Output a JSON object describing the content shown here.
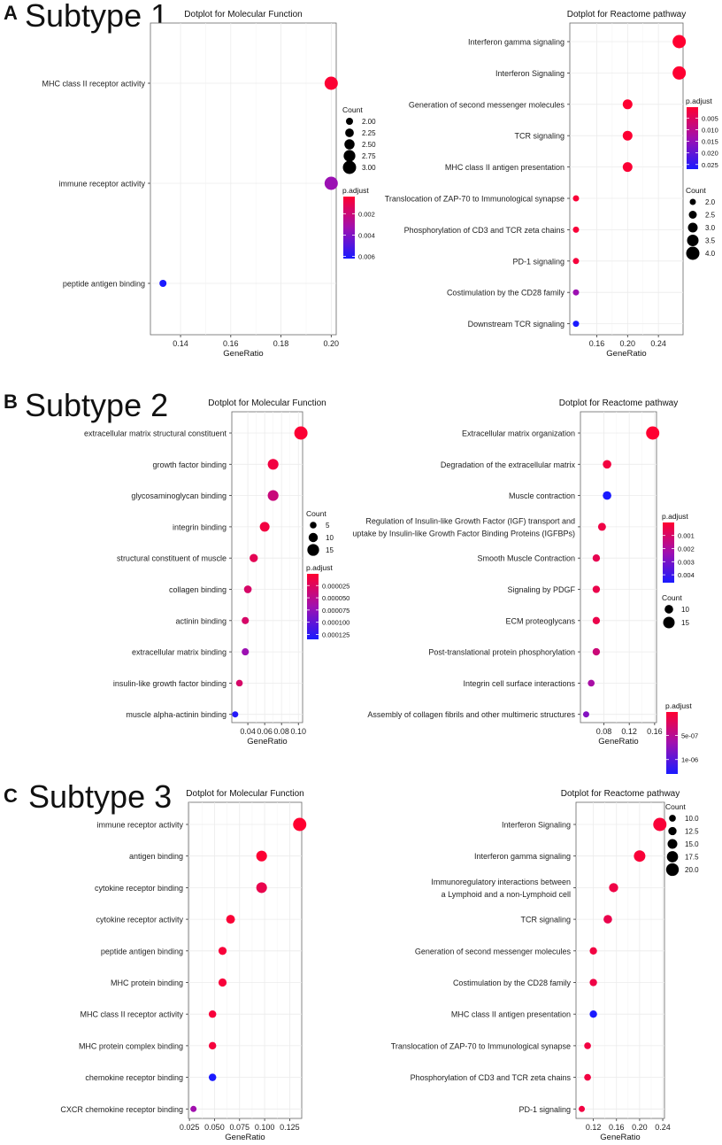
{
  "figure": {
    "panels": [
      {
        "letter": "A",
        "title": "Subtype 1"
      },
      {
        "letter": "B",
        "title": "Subtype 2"
      },
      {
        "letter": "C",
        "title": "Subtype 3"
      }
    ]
  },
  "chart_data": [
    {
      "id": "a-mf",
      "type": "scatter",
      "title": "Dotplot for Molecular Function",
      "xlabel": "GeneRatio",
      "ylabel": "",
      "xlim": [
        0.128,
        0.202
      ],
      "xticks": [
        0.14,
        0.16,
        0.18,
        0.2
      ],
      "xtick_labels": [
        "0.14",
        "0.16",
        "0.18",
        "0.20"
      ],
      "categories": [
        "MHC class II receptor activity",
        "immune receptor activity",
        "peptide antigen binding"
      ],
      "gene_ratio": [
        0.2,
        0.2,
        0.133
      ],
      "count": [
        3,
        3,
        2
      ],
      "p_adjust": [
        0.0005,
        0.0034,
        0.0062
      ],
      "padj_range": [
        0.0004,
        0.0062
      ],
      "count_range": [
        2,
        3
      ],
      "color_legend": {
        "title": "p.adjust",
        "ticks": [
          0.002,
          0.004,
          0.006
        ],
        "tick_labels": [
          "0.002",
          "0.004",
          "0.006"
        ]
      },
      "size_legend": {
        "title": "Count",
        "values": [
          2.0,
          2.25,
          2.5,
          2.75,
          3.0
        ],
        "labels": [
          "2.00",
          "2.25",
          "2.50",
          "2.75",
          "3.00"
        ]
      }
    },
    {
      "id": "a-re",
      "type": "scatter",
      "title": "Dotplot for Reactome pathway",
      "xlabel": "GeneRatio",
      "ylabel": "",
      "xlim": [
        0.125,
        0.272
      ],
      "xticks": [
        0.16,
        0.2,
        0.24
      ],
      "xtick_labels": [
        "0.16",
        "0.20",
        "0.24"
      ],
      "categories": [
        "Interferon gamma signaling",
        "Interferon Signaling",
        "Generation of second messenger molecules",
        "TCR signaling",
        "MHC class II antigen presentation",
        "Translocation of ZAP-70 to Immunological synapse",
        "Phosphorylation of CD3 and TCR zeta chains",
        "PD-1 signaling",
        "Costimulation by the CD28 family",
        "Downstream TCR signaling"
      ],
      "gene_ratio": [
        0.267,
        0.267,
        0.2,
        0.2,
        0.2,
        0.133,
        0.133,
        0.133,
        0.133,
        0.133
      ],
      "count": [
        4,
        4,
        3,
        3,
        3,
        2,
        2,
        2,
        2,
        2
      ],
      "p_adjust": [
        0.0003,
        0.0005,
        0.0004,
        0.0006,
        0.0008,
        0.001,
        0.0012,
        0.0015,
        0.014,
        0.027
      ],
      "padj_range": [
        0.0003,
        0.027
      ],
      "count_range": [
        2,
        4
      ],
      "color_legend": {
        "title": "p.adjust",
        "ticks": [
          0.005,
          0.01,
          0.015,
          0.02,
          0.025
        ],
        "tick_labels": [
          "0.005",
          "0.010",
          "0.015",
          "0.020",
          "0.025"
        ]
      },
      "size_legend": {
        "title": "Count",
        "values": [
          2.0,
          2.5,
          3.0,
          3.5,
          4.0
        ],
        "labels": [
          "2.0",
          "2.5",
          "3.0",
          "3.5",
          "4.0"
        ]
      }
    },
    {
      "id": "b-mf",
      "type": "scatter",
      "title": "Dotplot for Molecular Function",
      "xlabel": "GeneRatio",
      "ylabel": "",
      "xlim": [
        0.021,
        0.105
      ],
      "xticks": [
        0.04,
        0.06,
        0.08,
        0.1
      ],
      "xtick_labels": [
        "0.04",
        "0.06",
        "0.08",
        "0.10"
      ],
      "categories": [
        "extracellular matrix structural constituent",
        "growth factor binding",
        "glycosaminoglycan binding",
        "integrin binding",
        "structural constituent of muscle",
        "collagen binding",
        "actinin binding",
        "extracellular matrix binding",
        "insulin-like growth factor binding",
        "muscle alpha-actinin binding"
      ],
      "gene_ratio": [
        0.103,
        0.07,
        0.07,
        0.06,
        0.047,
        0.04,
        0.037,
        0.037,
        0.03,
        0.025
      ],
      "count": [
        18,
        13,
        13,
        11,
        8,
        7,
        6,
        6,
        5,
        4
      ],
      "p_adjust": [
        3e-06,
        1e-05,
        4e-05,
        1e-05,
        2e-05,
        3e-05,
        3e-05,
        7e-05,
        3e-05,
        0.00013
      ],
      "padj_range": [
        1e-06,
        0.000135
      ],
      "count_range": [
        4,
        18
      ],
      "color_legend": {
        "title": "p.adjust",
        "ticks": [
          2.5e-05,
          5e-05,
          7.5e-05,
          0.0001,
          0.000125
        ],
        "tick_labels": [
          "0.000025",
          "0.000050",
          "0.000075",
          "0.000100",
          "0.000125"
        ]
      },
      "size_legend": {
        "title": "Count",
        "values": [
          5,
          10,
          15
        ],
        "labels": [
          "5",
          "10",
          "15"
        ]
      }
    },
    {
      "id": "b-re",
      "type": "scatter",
      "title": "Dotplot for Reactome pathway",
      "xlabel": "GeneRatio",
      "ylabel": "",
      "xlim": [
        0.043,
        0.163
      ],
      "xticks": [
        0.08,
        0.12,
        0.16
      ],
      "xtick_labels": [
        "0.08",
        "0.12",
        "0.16"
      ],
      "categories": [
        "Extracellular matrix organization",
        "Degradation of the extracellular matrix",
        "Muscle contraction",
        "Regulation of Insulin-like Growth Factor (IGF) transport and uptake by Insulin-like Growth Factor Binding Proteins (IGFBPs)",
        "Smooth Muscle Contraction",
        "Signaling by PDGF",
        "ECM proteoglycans",
        "Post-translational protein phosphorylation",
        "Integrin cell surface interactions",
        "Assembly of collagen fibrils and other multimeric structures"
      ],
      "category_lines": [
        null,
        null,
        null,
        [
          "Regulation of Insulin-like Growth Factor (IGF) transport and",
          "uptake by Insulin-like Growth Factor Binding Proteins (IGFBPs)"
        ],
        null,
        null,
        null,
        null,
        null,
        null
      ],
      "gene_ratio": [
        0.157,
        0.085,
        0.085,
        0.077,
        0.068,
        0.068,
        0.068,
        0.068,
        0.06,
        0.052
      ],
      "count": [
        18,
        10,
        10,
        9,
        8,
        8,
        8,
        8,
        7,
        6
      ],
      "p_adjust": [
        2e-05,
        0.0003,
        0.0046,
        0.0004,
        0.0006,
        0.0005,
        0.0005,
        0.0013,
        0.0021,
        0.0028
      ],
      "padj_range": [
        1e-05,
        0.0046
      ],
      "count_range": [
        6,
        18
      ],
      "color_legend": {
        "title": "p.adjust",
        "ticks": [
          0.001,
          0.002,
          0.003,
          0.004
        ],
        "tick_labels": [
          "0.001",
          "0.002",
          "0.003",
          "0.004"
        ]
      },
      "size_legend": {
        "title": "Count",
        "values": [
          10,
          15
        ],
        "labels": [
          "10",
          "15"
        ]
      }
    },
    {
      "id": "c-mf",
      "type": "scatter",
      "title": "Dotplot for Molecular Function",
      "xlabel": "GeneRatio",
      "ylabel": "",
      "xlim": [
        0.024,
        0.137
      ],
      "xticks": [
        0.025,
        0.05,
        0.075,
        0.1,
        0.125
      ],
      "xtick_labels": [
        "0.025",
        "0.050",
        "0.075",
        "0.100",
        "0.125"
      ],
      "categories": [
        "immune receptor activity",
        "antigen binding",
        "cytokine receptor binding",
        "cytokine receptor activity",
        "peptide antigen binding",
        "MHC protein binding",
        "MHC class II receptor activity",
        "MHC protein complex binding",
        "chemokine receptor binding",
        "CXCR chemokine receptor binding"
      ],
      "gene_ratio": [
        0.135,
        0.097,
        0.097,
        0.066,
        0.058,
        0.058,
        0.048,
        0.048,
        0.048,
        0.029
      ],
      "count": [
        14,
        10,
        10,
        7,
        6,
        6,
        5,
        5,
        5,
        3
      ],
      "p_adjust": [
        1e-06,
        2e-06,
        1e-05,
        3e-06,
        4e-06,
        4e-06,
        4e-06,
        5e-06,
        8e-05,
        4e-05
      ],
      "padj_range": [
        1e-06,
        8e-05
      ],
      "count_range": [
        3,
        14
      ],
      "color_legend": {
        "title": "",
        "ticks": [],
        "tick_labels": []
      },
      "size_legend": {
        "title": "",
        "values": [],
        "labels": []
      }
    },
    {
      "id": "c-re",
      "type": "scatter",
      "title": "Dotplot for Reactome pathway",
      "xlabel": "GeneRatio",
      "ylabel": "",
      "xlim": [
        0.09,
        0.243
      ],
      "xticks": [
        0.12,
        0.16,
        0.2,
        0.24
      ],
      "xtick_labels": [
        "0.12",
        "0.16",
        "0.20",
        "0.24"
      ],
      "categories": [
        "Interferon Signaling",
        "Interferon gamma signaling",
        "Immunoregulatory interactions between a Lymphoid and a non-Lymphoid cell",
        "TCR signaling",
        "Generation of second messenger molecules",
        "Costimulation by the CD28 family",
        "MHC class II antigen presentation",
        "Translocation of ZAP-70 to Immunological synapse",
        "Phosphorylation of CD3 and TCR zeta chains",
        "PD-1 signaling"
      ],
      "category_lines": [
        null,
        null,
        [
          "Immunoregulatory interactions between",
          "a Lymphoid and a non-Lymphoid cell"
        ],
        null,
        null,
        null,
        null,
        null,
        null,
        null
      ],
      "gene_ratio": [
        0.235,
        0.2,
        0.155,
        0.145,
        0.12,
        0.12,
        0.12,
        0.11,
        0.11,
        0.1
      ],
      "count": [
        21,
        18,
        14,
        13,
        11,
        11,
        11,
        10,
        10,
        9
      ],
      "p_adjust": [
        5e-08,
        5e-08,
        1.2e-07,
        1.5e-07,
        1e-07,
        1.2e-07,
        1.3e-06,
        1e-07,
        1e-07,
        1e-07
      ],
      "padj_range": [
        1e-08,
        1.3e-06
      ],
      "count_range": [
        9,
        21
      ],
      "color_legend": {
        "title": "p.adjust",
        "ticks": [
          5e-07,
          1e-06
        ],
        "tick_labels": [
          "5e-07",
          "1e-06"
        ]
      },
      "size_legend": {
        "title": "Count",
        "values": [
          10,
          12.5,
          15,
          17.5,
          20
        ],
        "labels": [
          "10.0",
          "12.5",
          "15.0",
          "17.5",
          "20.0"
        ]
      }
    }
  ]
}
